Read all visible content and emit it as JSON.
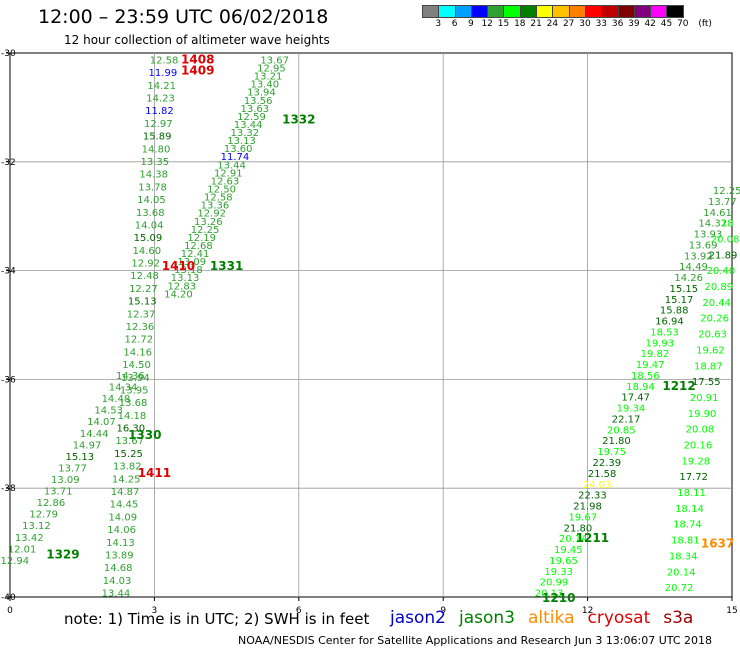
{
  "header": {
    "title": "12:00 – 23:59 UTC 06/02/2018",
    "subtitle": "12 hour collection of altimeter wave heights"
  },
  "legend": {
    "swatches": [
      "#808080",
      "#00ffff",
      "#00a0ff",
      "#0000ff",
      "#30a030",
      "#00ff00",
      "#008000",
      "#ffff00",
      "#ffc000",
      "#ff8000",
      "#ff0000",
      "#c00000",
      "#800000",
      "#800080",
      "#ff00ff",
      "#000000"
    ],
    "labels": [
      "3",
      "6",
      "9",
      "12",
      "15",
      "18",
      "21",
      "24",
      "27",
      "30",
      "33",
      "36",
      "39",
      "42",
      "45",
      "70",
      "(ft)"
    ]
  },
  "footer": {
    "note": "note:  1) Time is in UTC; 2) SWH is in feet",
    "credit": "NOAA/NESDIS Center for Satellite Applications and Research   Jun  3 13:06:07 UTC 2018",
    "satellites": [
      {
        "name": "jason2",
        "color": "#0000cc"
      },
      {
        "name": "jason3",
        "color": "#008000"
      },
      {
        "name": "altika",
        "color": "#ff8c00"
      },
      {
        "name": "cryosat",
        "color": "#e00000"
      },
      {
        "name": "s3a",
        "color": "#990000"
      }
    ]
  },
  "colors": {
    "grid": "#999999",
    "h9_12": "#0000ff",
    "h12_15": "#30a030",
    "h15_18": "#006400",
    "h18_21": "#00ff00",
    "h21_24": "#006400",
    "h24_27": "#ffff00",
    "h27_30": "#ffc000"
  },
  "chart_data": {
    "type": "scatter",
    "title": "12:00 – 23:59 UTC 06/02/2018",
    "xlim": [
      0,
      15
    ],
    "ylim": [
      -40,
      -30
    ],
    "x_ticks": [
      "0",
      "3",
      "6",
      "9",
      "12",
      "15"
    ],
    "y_ticks": [
      "-30",
      "-32",
      "-34",
      "-36",
      "-38",
      "-40"
    ],
    "grid": true,
    "track_labels": [
      {
        "text": "1408",
        "x": 3.9,
        "y": -30.1,
        "color": "#e00000"
      },
      {
        "text": "1409",
        "x": 3.9,
        "y": -30.3,
        "color": "#e00000"
      },
      {
        "text": "1332",
        "x": 6.0,
        "y": -31.2,
        "color": "#008000"
      },
      {
        "text": "1410",
        "x": 3.5,
        "y": -33.9,
        "color": "#e00000"
      },
      {
        "text": "1331",
        "x": 4.5,
        "y": -33.9,
        "color": "#008000"
      },
      {
        "text": "1330",
        "x": 2.8,
        "y": -37.0,
        "color": "#008000"
      },
      {
        "text": "1411",
        "x": 3.0,
        "y": -37.7,
        "color": "#e00000"
      },
      {
        "text": "1329",
        "x": 1.1,
        "y": -39.2,
        "color": "#008000"
      },
      {
        "text": "1212",
        "x": 13.9,
        "y": -36.1,
        "color": "#008000"
      },
      {
        "text": "1211",
        "x": 12.1,
        "y": -38.9,
        "color": "#008000"
      },
      {
        "text": "1210",
        "x": 11.4,
        "y": -40.0,
        "color": "#008000"
      },
      {
        "text": "1637",
        "x": 14.7,
        "y": -39.0,
        "color": "#ff8c00"
      }
    ],
    "tracks": [
      {
        "start": [
          3.2,
          -30.1
        ],
        "end": [
          1.9,
          -37.7
        ],
        "values": [
          "12.58",
          "11.99",
          "14.21",
          "14.23",
          "11.82",
          "12.97",
          "15.89",
          "14.80",
          "13.35",
          "14.38",
          "13.78",
          "14.05",
          "13.68",
          "14.04",
          "15.09",
          "14.60",
          "12.92",
          "12.48",
          "12.27",
          "15.13",
          "12.37",
          "12.36",
          "12.72",
          "14.16",
          "14.50",
          "13.94",
          "13.95",
          "13.68",
          "14.18",
          "16.30",
          "13.67",
          "15.25",
          "13.82",
          "14.25",
          "14.87",
          "14.45",
          "14.09",
          "14.06",
          "14.13",
          "13.89",
          "14.68",
          "14.03",
          "13.44"
        ],
        "extend_end": [
          2.2,
          -39.9
        ]
      },
      {
        "start": [
          5.5,
          -30.1
        ],
        "end": [
          3.5,
          -34.4
        ],
        "values": [
          "13.67",
          "12.95",
          "13.21",
          "13.40",
          "13.94",
          "13.56",
          "13.63",
          "12.59",
          "13.44",
          "13.32",
          "13.13",
          "13.60",
          "11.74",
          "13.44",
          "12.91",
          "12.63",
          "12.50",
          "12.58",
          "13.36",
          "12.92",
          "13.26",
          "12.25",
          "12.19",
          "12.68",
          "12.41",
          "13.09",
          "13.18",
          "13.13",
          "12.83",
          "14.20"
        ]
      },
      {
        "start": [
          2.5,
          -35.9
        ],
        "end": [
          0.1,
          -39.3
        ],
        "values": [
          "14.36",
          "14.34",
          "14.48",
          "14.53",
          "14.07",
          "14.44",
          "14.97",
          "15.13",
          "13.77",
          "13.09",
          "13.71",
          "12.86",
          "12.79",
          "13.12",
          "13.42",
          "12.01",
          "12.94"
        ]
      },
      {
        "start": [
          14.9,
          -32.5
        ],
        "end": [
          11.2,
          -39.9
        ],
        "values": [
          "12.25",
          "13.77",
          "14.61",
          "14.32",
          "13.93",
          "13.69",
          "13.92",
          "14.49",
          "14.26",
          "15.15",
          "15.17",
          "15.88",
          "16.94",
          "18.53",
          "19.93",
          "19.82",
          "19.47",
          "18.56",
          "18.94",
          "17.47",
          "19.34",
          "22.17",
          "20.85",
          "21.80",
          "19.75",
          "22.39",
          "21.58",
          "24.03",
          "22.33",
          "21.98",
          "19.67",
          "21.80",
          "20.14",
          "19.45",
          "19.65",
          "19.33",
          "20.99",
          "20.13"
        ]
      },
      {
        "start": [
          14.9,
          -33.1
        ],
        "end": [
          13.9,
          -39.8
        ],
        "values": [
          "18",
          "20.08",
          "21.89",
          "20.40",
          "20.89",
          "20.44",
          "20.26",
          "20.63",
          "19.62",
          "18.87",
          "17.55",
          "20.91",
          "19.90",
          "20.08",
          "20.16",
          "19.28",
          "17.72",
          "18.11",
          "18.14",
          "18.74",
          "18.81",
          "18.34",
          "20.14",
          "20.72"
        ]
      }
    ]
  }
}
